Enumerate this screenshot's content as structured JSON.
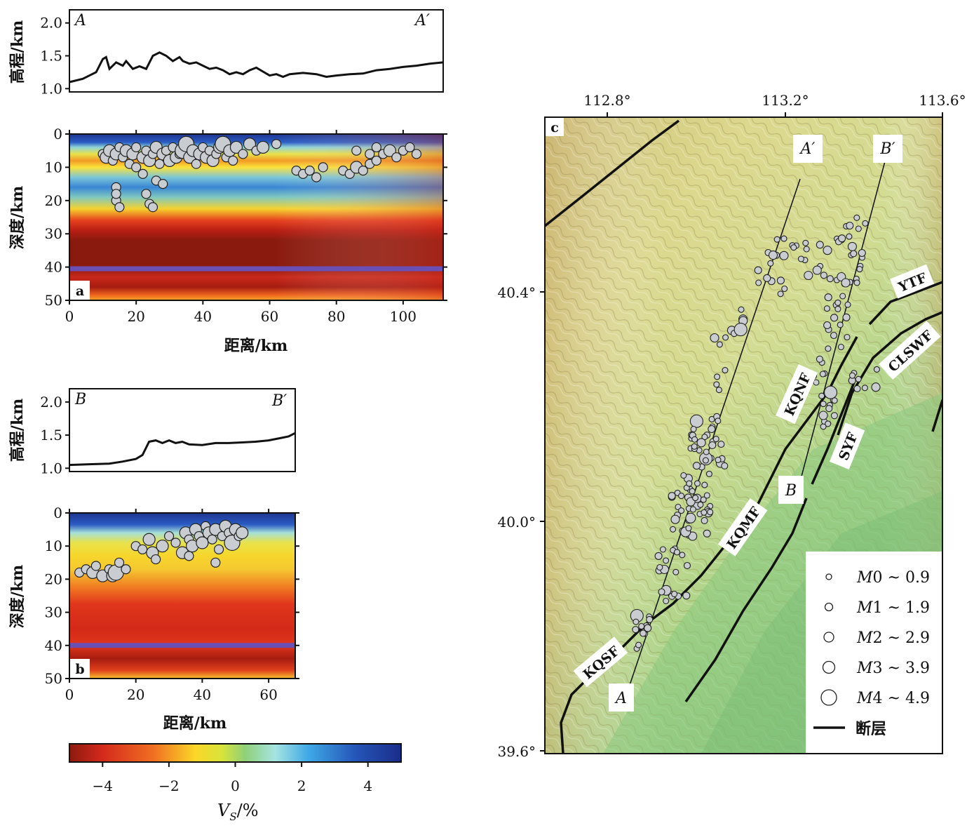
{
  "panels": {
    "a": {
      "letter": "a",
      "elev_ylabel": "高程/km",
      "elev_yticks": [
        "2.0",
        "1.5",
        "1.0"
      ],
      "elev_yrange": [
        0.95,
        2.2
      ],
      "start_label": "A",
      "end_label": "A′",
      "depth_ylabel": "深度/km",
      "depth_yticks": [
        "0",
        "10",
        "20",
        "30",
        "40",
        "50"
      ],
      "xlabel": "距离/km",
      "xticks": [
        "0",
        "20",
        "40",
        "60",
        "80",
        "100"
      ],
      "xrange": [
        0,
        112
      ],
      "moho_depth": 40.5,
      "elevation": [
        [
          0,
          1.1
        ],
        [
          4,
          1.15
        ],
        [
          8,
          1.25
        ],
        [
          10,
          1.45
        ],
        [
          11,
          1.48
        ],
        [
          12,
          1.3
        ],
        [
          14,
          1.4
        ],
        [
          16,
          1.35
        ],
        [
          17,
          1.42
        ],
        [
          19,
          1.3
        ],
        [
          21,
          1.34
        ],
        [
          23,
          1.3
        ],
        [
          25,
          1.5
        ],
        [
          27,
          1.55
        ],
        [
          29,
          1.5
        ],
        [
          31,
          1.42
        ],
        [
          33,
          1.48
        ],
        [
          34,
          1.42
        ],
        [
          36,
          1.38
        ],
        [
          38,
          1.4
        ],
        [
          40,
          1.35
        ],
        [
          42,
          1.3
        ],
        [
          44,
          1.32
        ],
        [
          46,
          1.28
        ],
        [
          48,
          1.22
        ],
        [
          50,
          1.25
        ],
        [
          52,
          1.22
        ],
        [
          54,
          1.28
        ],
        [
          56,
          1.32
        ],
        [
          58,
          1.26
        ],
        [
          60,
          1.2
        ],
        [
          62,
          1.22
        ],
        [
          64,
          1.18
        ],
        [
          66,
          1.22
        ],
        [
          70,
          1.24
        ],
        [
          74,
          1.22
        ],
        [
          77,
          1.18
        ],
        [
          80,
          1.2
        ],
        [
          84,
          1.22
        ],
        [
          88,
          1.23
        ],
        [
          92,
          1.28
        ],
        [
          96,
          1.3
        ],
        [
          100,
          1.33
        ],
        [
          104,
          1.35
        ],
        [
          108,
          1.38
        ],
        [
          112,
          1.4
        ]
      ],
      "events": [
        [
          10,
          6,
          2
        ],
        [
          11,
          7,
          3
        ],
        [
          12,
          5,
          3
        ],
        [
          13,
          8,
          2
        ],
        [
          14,
          6,
          3
        ],
        [
          15,
          4,
          2
        ],
        [
          16,
          7,
          2
        ],
        [
          17,
          5,
          3
        ],
        [
          18,
          9,
          2
        ],
        [
          19,
          6,
          3
        ],
        [
          20,
          4,
          2
        ],
        [
          22,
          7,
          3
        ],
        [
          23,
          5,
          2
        ],
        [
          24,
          8,
          3
        ],
        [
          25,
          6,
          2
        ],
        [
          26,
          4,
          3
        ],
        [
          27,
          9,
          2
        ],
        [
          28,
          6,
          3
        ],
        [
          29,
          5,
          2
        ],
        [
          30,
          8,
          3
        ],
        [
          31,
          4,
          2
        ],
        [
          32,
          7,
          3
        ],
        [
          33,
          6,
          2
        ],
        [
          34,
          5,
          4
        ],
        [
          35,
          3,
          4
        ],
        [
          36,
          7,
          3
        ],
        [
          37,
          5,
          3
        ],
        [
          38,
          9,
          2
        ],
        [
          39,
          6,
          3
        ],
        [
          40,
          4,
          2
        ],
        [
          41,
          7,
          3
        ],
        [
          42,
          5,
          2
        ],
        [
          43,
          8,
          3
        ],
        [
          44,
          6,
          2
        ],
        [
          45,
          4,
          3
        ],
        [
          46,
          3,
          4
        ],
        [
          47,
          7,
          2
        ],
        [
          48,
          5,
          3
        ],
        [
          49,
          8,
          2
        ],
        [
          50,
          4,
          3
        ],
        [
          52,
          6,
          2
        ],
        [
          54,
          3,
          3
        ],
        [
          56,
          5,
          2
        ],
        [
          58,
          4,
          3
        ],
        [
          62,
          3,
          2
        ],
        [
          14,
          16,
          2
        ],
        [
          14,
          20,
          2
        ],
        [
          15,
          22,
          2
        ],
        [
          14,
          18,
          2
        ],
        [
          23,
          18,
          2
        ],
        [
          24,
          21,
          2
        ],
        [
          25,
          22,
          2
        ],
        [
          20,
          10,
          2
        ],
        [
          22,
          12,
          2
        ],
        [
          26,
          14,
          2
        ],
        [
          28,
          15,
          2
        ],
        [
          68,
          11,
          2
        ],
        [
          70,
          12,
          2
        ],
        [
          72,
          11,
          2
        ],
        [
          74,
          13,
          2
        ],
        [
          76,
          10,
          2
        ],
        [
          82,
          11,
          2
        ],
        [
          84,
          12,
          2
        ],
        [
          86,
          10,
          3
        ],
        [
          88,
          11,
          2
        ],
        [
          90,
          9,
          2
        ],
        [
          92,
          8,
          2
        ],
        [
          94,
          6,
          2
        ],
        [
          96,
          5,
          3
        ],
        [
          98,
          7,
          2
        ],
        [
          100,
          5,
          2
        ],
        [
          102,
          4,
          2
        ],
        [
          104,
          6,
          2
        ],
        [
          86,
          5,
          2
        ],
        [
          90,
          6,
          2
        ],
        [
          92,
          4,
          2
        ]
      ]
    },
    "b": {
      "letter": "b",
      "elev_ylabel": "高程/km",
      "elev_yticks": [
        "2.0",
        "1.5",
        "1.0"
      ],
      "elev_yrange": [
        0.95,
        2.2
      ],
      "start_label": "B",
      "end_label": "B′",
      "depth_ylabel": "深度/km",
      "depth_yticks": [
        "0",
        "10",
        "20",
        "30",
        "40",
        "50"
      ],
      "xlabel": "距离/km",
      "xticks": [
        "0",
        "20",
        "40",
        "60"
      ],
      "xrange": [
        0,
        68
      ],
      "moho_depth": 40,
      "elevation": [
        [
          0,
          1.05
        ],
        [
          6,
          1.06
        ],
        [
          12,
          1.07
        ],
        [
          16,
          1.1
        ],
        [
          20,
          1.14
        ],
        [
          22,
          1.2
        ],
        [
          24,
          1.4
        ],
        [
          26,
          1.42
        ],
        [
          28,
          1.38
        ],
        [
          30,
          1.42
        ],
        [
          32,
          1.38
        ],
        [
          34,
          1.4
        ],
        [
          36,
          1.36
        ],
        [
          40,
          1.35
        ],
        [
          44,
          1.38
        ],
        [
          48,
          1.38
        ],
        [
          52,
          1.39
        ],
        [
          56,
          1.4
        ],
        [
          60,
          1.42
        ],
        [
          64,
          1.46
        ],
        [
          66,
          1.48
        ],
        [
          68,
          1.53
        ]
      ],
      "events": [
        [
          3,
          18,
          2
        ],
        [
          5,
          17,
          2
        ],
        [
          7,
          18,
          3
        ],
        [
          8,
          16,
          2
        ],
        [
          10,
          19,
          3
        ],
        [
          12,
          17,
          2
        ],
        [
          13,
          19,
          3
        ],
        [
          14,
          18,
          4
        ],
        [
          15,
          15,
          2
        ],
        [
          17,
          17,
          2
        ],
        [
          20,
          10,
          2
        ],
        [
          22,
          11,
          2
        ],
        [
          24,
          8,
          3
        ],
        [
          25,
          12,
          3
        ],
        [
          26,
          14,
          2
        ],
        [
          28,
          10,
          3
        ],
        [
          30,
          7,
          2
        ],
        [
          32,
          9,
          2
        ],
        [
          34,
          12,
          3
        ],
        [
          35,
          6,
          3
        ],
        [
          36,
          8,
          2
        ],
        [
          37,
          10,
          3
        ],
        [
          38,
          5,
          3
        ],
        [
          39,
          7,
          2
        ],
        [
          40,
          9,
          3
        ],
        [
          41,
          4,
          2
        ],
        [
          42,
          6,
          3
        ],
        [
          43,
          8,
          2
        ],
        [
          44,
          5,
          3
        ],
        [
          45,
          11,
          2
        ],
        [
          46,
          7,
          2
        ],
        [
          47,
          4,
          3
        ],
        [
          48,
          6,
          2
        ],
        [
          49,
          9,
          4
        ],
        [
          50,
          5,
          3
        ],
        [
          51,
          7,
          2
        ],
        [
          52,
          6,
          3
        ],
        [
          44,
          15,
          2
        ],
        [
          36,
          13,
          2
        ]
      ]
    }
  },
  "colorbar": {
    "ticks": [
      "−4",
      "−2",
      "0",
      "2",
      "4"
    ],
    "range": [
      -5,
      5
    ],
    "label_main": "V",
    "label_sub": "S",
    "label_rest": "/%"
  },
  "map": {
    "letter": "c",
    "lon_ticks": [
      "112.8°",
      "113.2°",
      "113.6°"
    ],
    "lat_ticks": [
      "40.4°",
      "40.0°",
      "39.6°"
    ],
    "profile_labels": {
      "A": "A",
      "A_prime": "A′",
      "B": "B",
      "B_prime": "B′"
    },
    "fault_labels": [
      "KQSF",
      "KQMF",
      "KQNF",
      "SYF",
      "CLSWF",
      "YTF"
    ],
    "legend": [
      {
        "m": "M",
        "range": "0 ~ 0.9"
      },
      {
        "m": "M",
        "range": "1 ~ 1.9"
      },
      {
        "m": "M",
        "range": "2 ~ 2.9"
      },
      {
        "m": "M",
        "range": "3 ~ 3.9"
      },
      {
        "m": "M",
        "range": "4 ~ 4.9"
      }
    ],
    "legend_fault": "断层"
  },
  "chart_data": [
    {
      "type": "line",
      "title": "",
      "xlabel": "距离/km",
      "ylabel": "高程/km",
      "series": [
        {
          "name": "A",
          "ref": "panels.a.elevation"
        }
      ],
      "xlim": [
        0,
        112
      ],
      "ylim": [
        0.95,
        2.2
      ]
    },
    {
      "type": "heatmap",
      "xlabel": "距离/km",
      "ylabel": "深度/km",
      "xlim": [
        0,
        112
      ],
      "ylim": [
        50,
        0
      ],
      "colorbar": "V_S/%",
      "overlay": "scatter",
      "events_ref": "panels.a.events"
    },
    {
      "type": "line",
      "xlabel": "距离/km",
      "ylabel": "高程/km",
      "series": [
        {
          "name": "B",
          "ref": "panels.b.elevation"
        }
      ],
      "xlim": [
        0,
        68
      ],
      "ylim": [
        0.95,
        2.2
      ]
    },
    {
      "type": "heatmap",
      "xlabel": "距离/km",
      "ylabel": "深度/km",
      "xlim": [
        0,
        68
      ],
      "ylim": [
        50,
        0
      ],
      "colorbar": "V_S/%",
      "overlay": "scatter",
      "events_ref": "panels.b.events"
    }
  ]
}
